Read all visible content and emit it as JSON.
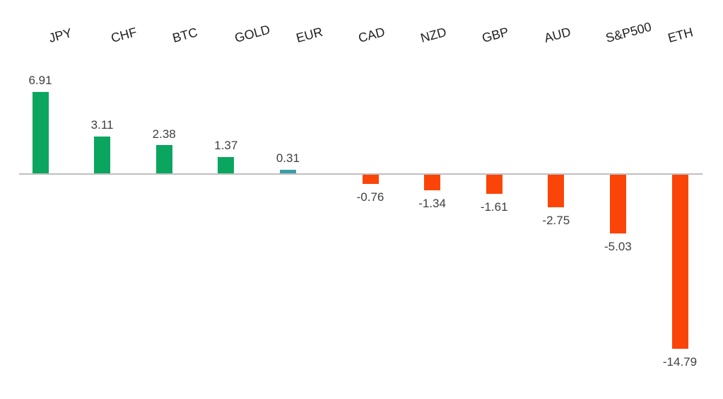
{
  "chart_data": {
    "type": "bar",
    "title": "",
    "xlabel": "",
    "ylabel": "",
    "grid": false,
    "legend": false,
    "baseline": 0,
    "ylim": [
      -15,
      7
    ],
    "categories": [
      "JPY",
      "CHF",
      "BTC",
      "GOLD",
      "EUR",
      "CAD",
      "NZD",
      "GBP",
      "AUD",
      "S&P500",
      "ETH"
    ],
    "values": [
      6.91,
      3.11,
      2.38,
      1.37,
      0.31,
      -0.76,
      -1.34,
      -1.61,
      -2.75,
      -5.03,
      -14.79
    ],
    "value_labels": [
      "6.91",
      "3.11",
      "2.38",
      "1.37",
      "0.31",
      "-0.76",
      "-1.34",
      "-1.61",
      "-2.75",
      "-5.03",
      "-14.79"
    ],
    "bar_colors": [
      "#0AA65F",
      "#0AA65F",
      "#0AA65F",
      "#0AA65F",
      "#3B9EA8",
      "#FB4508",
      "#FB4508",
      "#FB4508",
      "#FB4508",
      "#FB4508",
      "#FB4508"
    ],
    "colors": {
      "positive": "#0AA65F",
      "negative": "#FB4508",
      "eur_highlight": "#3B9EA8",
      "axis_line": "#BFBFBF",
      "category_label": "#1F1F1F",
      "value_label": "#404040",
      "background": "#FFFFFF"
    }
  }
}
